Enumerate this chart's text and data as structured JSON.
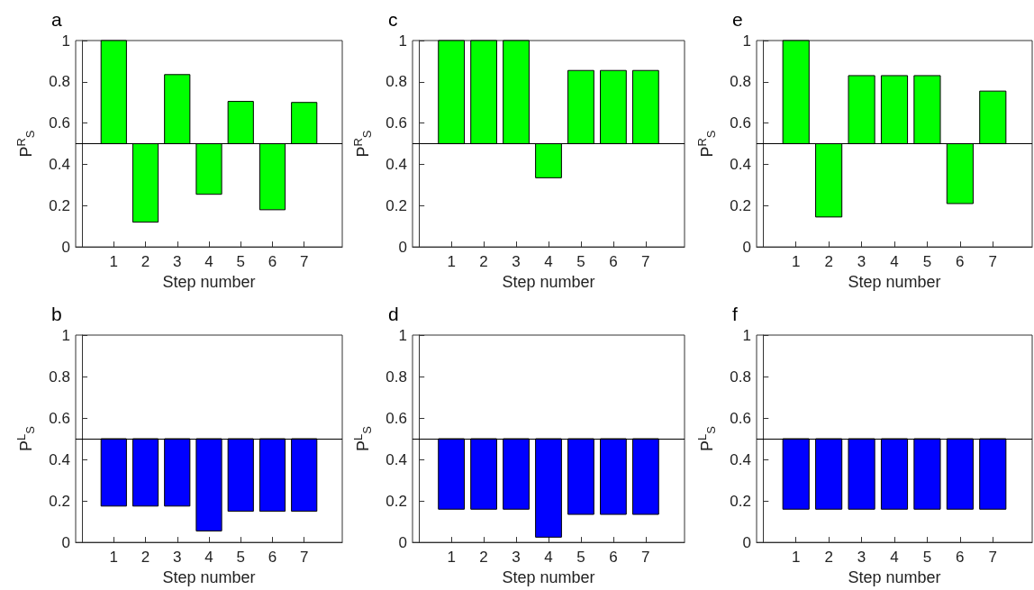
{
  "chart_data": [
    {
      "type": "bar",
      "title": "a",
      "xlabel": "Step number",
      "ylabel": "P$^{R}$$_{S}$",
      "x": [
        1,
        2,
        3,
        4,
        5,
        6,
        7
      ],
      "base": [
        0.5,
        0.5,
        0.5,
        0.5,
        0.5,
        0.5,
        0.5
      ],
      "values": [
        0.5,
        -0.38,
        0.335,
        -0.245,
        0.205,
        -0.32,
        0.2
      ],
      "color": "#00ff00",
      "xlim": [
        -0.2,
        8.2
      ],
      "xticks": [
        1,
        2,
        3,
        4,
        5,
        6,
        7
      ],
      "ylim": [
        0,
        1
      ],
      "yticks": [
        0,
        0.2,
        0.4,
        0.6,
        0.8,
        1
      ],
      "ref_lines": [
        {
          "axis": "y",
          "value": 0.5,
          "color": "#000000"
        }
      ]
    },
    {
      "type": "bar",
      "title": "c",
      "xlabel": "Step number",
      "ylabel": "P$^{R}$$_{S}$",
      "x": [
        1,
        2,
        3,
        4,
        5,
        6,
        7
      ],
      "base": [
        0.5,
        0.5,
        0.5,
        0.5,
        0.5,
        0.5,
        0.5
      ],
      "values": [
        0.5,
        0.5,
        0.5,
        -0.165,
        0.355,
        0.355,
        0.355
      ],
      "color": "#00ff00",
      "xlim": [
        -0.2,
        8.2
      ],
      "xticks": [
        1,
        2,
        3,
        4,
        5,
        6,
        7
      ],
      "ylim": [
        0,
        1
      ],
      "yticks": [
        0,
        0.2,
        0.4,
        0.6,
        0.8,
        1
      ],
      "ref_lines": [
        {
          "axis": "y",
          "value": 0.5,
          "color": "#000000"
        }
      ]
    },
    {
      "type": "bar",
      "title": "e",
      "xlabel": "Step number",
      "ylabel": "P$^{R}$$_{S}$",
      "x": [
        1,
        2,
        3,
        4,
        5,
        6,
        7
      ],
      "base": [
        0.5,
        0.5,
        0.5,
        0.5,
        0.5,
        0.5,
        0.5
      ],
      "values": [
        0.5,
        -0.355,
        0.33,
        0.33,
        0.33,
        -0.29,
        0.255
      ],
      "color": "#00ff00",
      "xlim": [
        -0.2,
        8.2
      ],
      "xticks": [
        1,
        2,
        3,
        4,
        5,
        6,
        7
      ],
      "ylim": [
        0,
        1
      ],
      "yticks": [
        0,
        0.2,
        0.4,
        0.6,
        0.8,
        1
      ],
      "ref_lines": [
        {
          "axis": "y",
          "value": 0.5,
          "color": "#000000"
        }
      ]
    },
    {
      "type": "bar",
      "title": "b",
      "xlabel": "Step number",
      "ylabel": "P$^{L}$$_{S}$",
      "x": [
        1,
        2,
        3,
        4,
        5,
        6,
        7
      ],
      "base": [
        0.5,
        0.5,
        0.5,
        0.5,
        0.5,
        0.5,
        0.5
      ],
      "values": [
        -0.325,
        -0.325,
        -0.325,
        -0.445,
        -0.35,
        -0.35,
        -0.35
      ],
      "color": "#0000ff",
      "xlim": [
        -0.2,
        8.2
      ],
      "xticks": [
        1,
        2,
        3,
        4,
        5,
        6,
        7
      ],
      "ylim": [
        0,
        1
      ],
      "yticks": [
        0,
        0.2,
        0.4,
        0.6,
        0.8,
        1
      ],
      "ref_lines": [
        {
          "axis": "y",
          "value": 0.5,
          "color": "#000000"
        }
      ]
    },
    {
      "type": "bar",
      "title": "d",
      "xlabel": "Step number",
      "ylabel": "P$^{L}$$_{S}$",
      "x": [
        1,
        2,
        3,
        4,
        5,
        6,
        7
      ],
      "base": [
        0.5,
        0.5,
        0.5,
        0.5,
        0.5,
        0.5,
        0.5
      ],
      "values": [
        -0.34,
        -0.34,
        -0.34,
        -0.475,
        -0.365,
        -0.365,
        -0.365
      ],
      "color": "#0000ff",
      "xlim": [
        -0.2,
        8.2
      ],
      "xticks": [
        1,
        2,
        3,
        4,
        5,
        6,
        7
      ],
      "ylim": [
        0,
        1
      ],
      "yticks": [
        0,
        0.2,
        0.4,
        0.6,
        0.8,
        1
      ],
      "ref_lines": [
        {
          "axis": "y",
          "value": 0.5,
          "color": "#000000"
        }
      ]
    },
    {
      "type": "bar",
      "title": "f",
      "xlabel": "Step number",
      "ylabel": "P$^{L}$$_{S}$",
      "x": [
        1,
        2,
        3,
        4,
        5,
        6,
        7
      ],
      "base": [
        0.5,
        0.5,
        0.5,
        0.5,
        0.5,
        0.5,
        0.5
      ],
      "values": [
        -0.34,
        -0.34,
        -0.34,
        -0.34,
        -0.34,
        -0.34,
        -0.34
      ],
      "color": "#0000ff",
      "xlim": [
        -0.2,
        8.2
      ],
      "xticks": [
        1,
        2,
        3,
        4,
        5,
        6,
        7
      ],
      "ylim": [
        0,
        1
      ],
      "yticks": [
        0,
        0.2,
        0.4,
        0.6,
        0.8,
        1
      ],
      "ref_lines": [
        {
          "axis": "y",
          "value": 0.5,
          "color": "#000000"
        }
      ]
    }
  ]
}
